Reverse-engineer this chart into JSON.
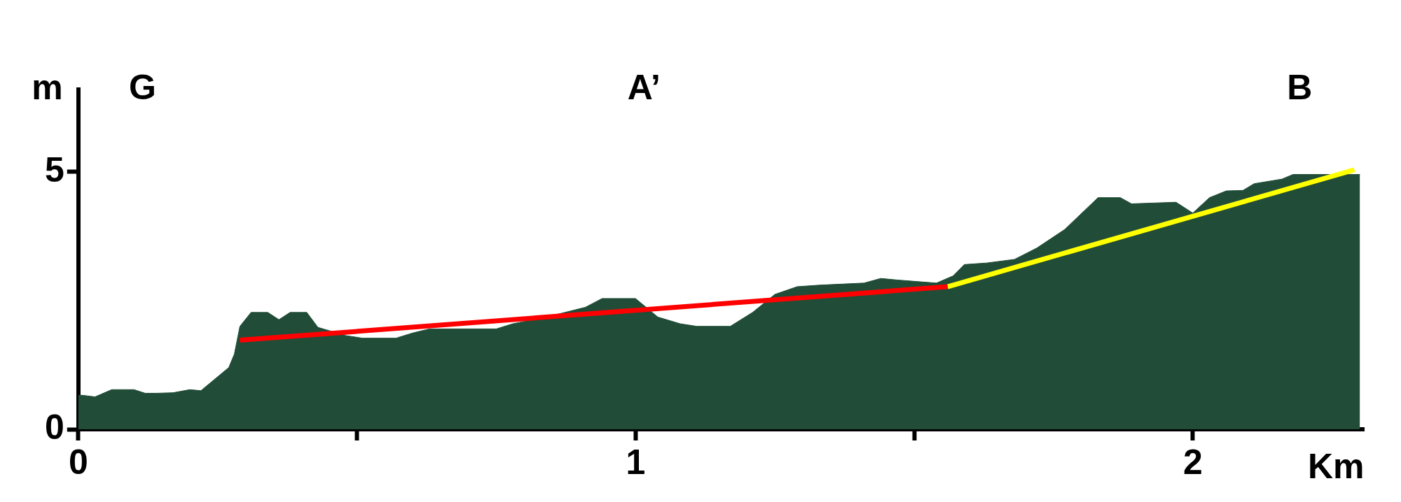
{
  "chart_data": {
    "type": "area",
    "xlabel": "Km",
    "ylabel": "m",
    "xlim": [
      0,
      2.307
    ],
    "ylim": [
      0,
      6.6
    ],
    "xticks": [
      0,
      {
        "value": 0.5,
        "label": null
      },
      1,
      {
        "value": 1.5,
        "label": null
      },
      2
    ],
    "yticks": [
      0,
      5
    ],
    "grid": false,
    "annotations": [
      "G",
      "A’",
      "B"
    ],
    "series": [
      {
        "color": "#214d38",
        "x": [
          0,
          0.008,
          0.03,
          0.06,
          0.1,
          0.12,
          0.14,
          0.17,
          0.2,
          0.22,
          0.27,
          0.28,
          0.29,
          0.31,
          0.34,
          0.36,
          0.38,
          0.41,
          0.43,
          0.48,
          0.51,
          0.57,
          0.6,
          0.63,
          0.75,
          0.78,
          0.84,
          0.91,
          0.94,
          1.0,
          1.04,
          1.08,
          1.11,
          1.17,
          1.21,
          1.25,
          1.29,
          1.33,
          1.41,
          1.44,
          1.47,
          1.54,
          1.57,
          1.59,
          1.63,
          1.68,
          1.72,
          1.77,
          1.83,
          1.87,
          1.89,
          1.97,
          2.0,
          2.03,
          2.06,
          2.09,
          2.11,
          2.16,
          2.18,
          2.3
        ],
        "values": [
          0.66,
          0.66,
          0.63,
          0.77,
          0.77,
          0.7,
          0.7,
          0.71,
          0.77,
          0.75,
          1.2,
          1.46,
          2.0,
          2.27,
          2.27,
          2.13,
          2.27,
          2.27,
          1.98,
          1.82,
          1.77,
          1.77,
          1.87,
          1.95,
          1.95,
          2.05,
          2.18,
          2.37,
          2.54,
          2.54,
          2.18,
          2.05,
          2.0,
          2.0,
          2.27,
          2.62,
          2.77,
          2.8,
          2.84,
          2.93,
          2.9,
          2.84,
          2.98,
          3.2,
          3.23,
          3.3,
          3.52,
          3.88,
          4.5,
          4.5,
          4.38,
          4.41,
          4.2,
          4.5,
          4.63,
          4.64,
          4.77,
          4.86,
          4.95,
          4.95
        ]
      },
      {
        "type": "line",
        "color": "#ff0000",
        "x": [
          0.29,
          1.56
        ],
        "values": [
          1.73,
          2.77
        ]
      },
      {
        "type": "line",
        "color": "#ffff00",
        "x": [
          1.56,
          2.29
        ],
        "values": [
          2.77,
          5.04
        ]
      }
    ]
  }
}
